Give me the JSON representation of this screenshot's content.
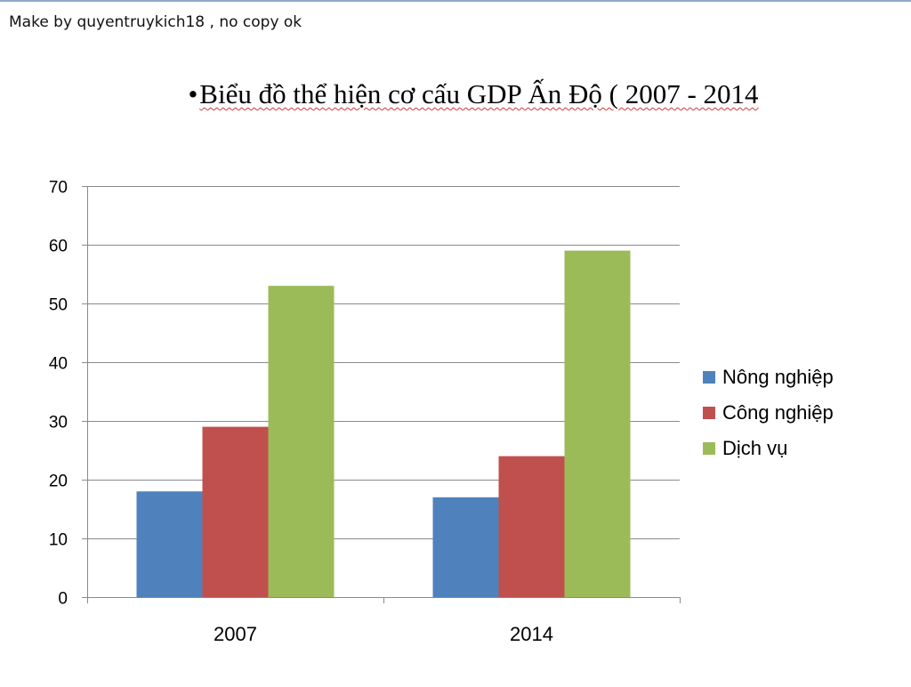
{
  "watermark": "Make by quyentruykich18  , no copy ok",
  "chart_data": {
    "type": "bar",
    "title_bullet": "•",
    "title": "Biểu đồ thể hiện cơ cấu GDP Ấn Độ ( 2007 - 2014",
    "xlabel": "",
    "ylabel": "",
    "categories": [
      "2007",
      "2014"
    ],
    "ylim": [
      0,
      70
    ],
    "yticks": [
      0,
      10,
      20,
      30,
      40,
      50,
      60,
      70
    ],
    "grid": true,
    "legend_position": "right",
    "series": [
      {
        "name": "Nông nghiệp",
        "values": [
          18,
          17
        ],
        "color": "#4f81bd"
      },
      {
        "name": "Công nghiệp",
        "values": [
          29,
          24
        ],
        "color": "#c0504d"
      },
      {
        "name": "Dịch vụ",
        "values": [
          53,
          59
        ],
        "color": "#9bbb59"
      }
    ]
  }
}
